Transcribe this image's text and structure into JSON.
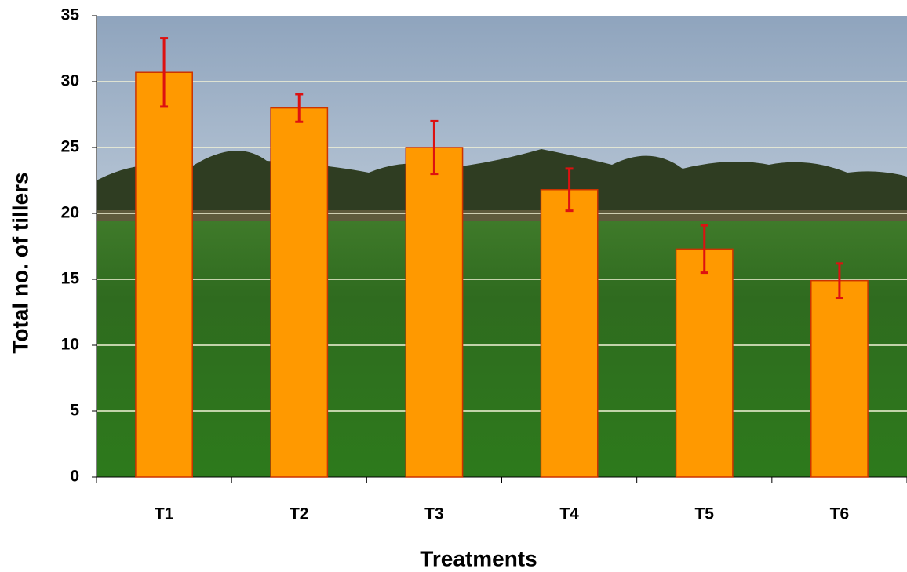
{
  "chart_data": {
    "type": "bar",
    "x_label": "Treatments",
    "y_label": "Total no. of tillers",
    "categories": [
      "T1",
      "T2",
      "T3",
      "T4",
      "T5",
      "T6"
    ],
    "values": [
      30.7,
      28.0,
      25.0,
      21.8,
      17.3,
      14.9
    ],
    "errors": [
      2.6,
      1.05,
      2.0,
      1.6,
      1.8,
      1.3
    ],
    "color": "#ff9900",
    "edge_color": "#cc3300",
    "error_color": "#dd1111",
    "ylim": [
      0,
      35
    ],
    "yticks": [
      0,
      5,
      10,
      15,
      20,
      25,
      30,
      35
    ],
    "grid": true
  }
}
